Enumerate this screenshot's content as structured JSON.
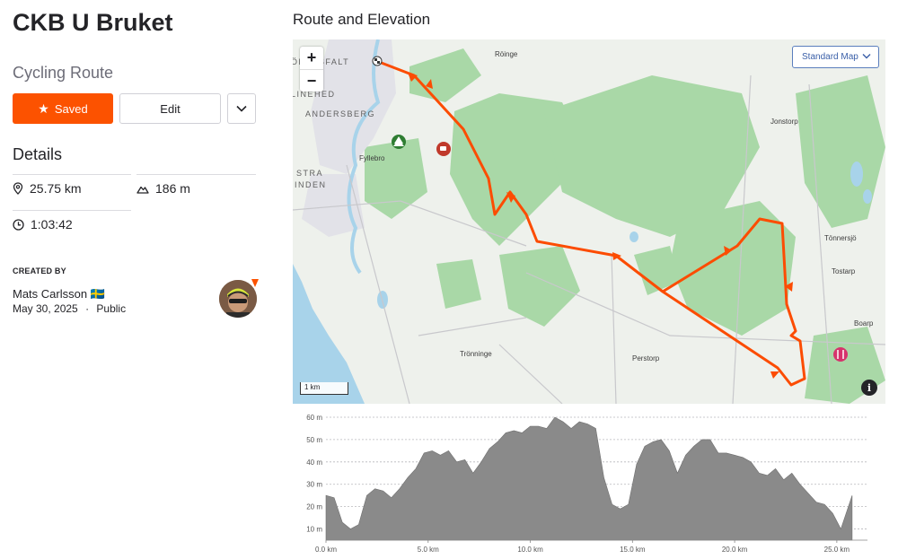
{
  "route": {
    "title": "CKB U Bruket",
    "type": "Cycling Route"
  },
  "buttons": {
    "saved_label": "Saved",
    "edit_label": "Edit"
  },
  "details": {
    "heading": "Details",
    "distance": "25.75 km",
    "elevation_gain": "186 m",
    "duration": "1:03:42"
  },
  "creator": {
    "heading": "CREATED BY",
    "name": "Mats Carlsson 🇸🇪",
    "date": "May 30, 2025",
    "visibility": "Public",
    "separator": "·"
  },
  "section": {
    "title": "Route and Elevation"
  },
  "map": {
    "zoom_in": "+",
    "zoom_out": "−",
    "style_label": "Standard Map",
    "scale_label": "1 km",
    "info_label": "i",
    "labels": {
      "rovsfalt": "ÖRAVSFALT",
      "roinge": "Röinge",
      "linehed": "LINEHED",
      "andersberg": "ANDERSBERG",
      "fyllebro": "Fyllebro",
      "stra": "STRA",
      "inden": "INDEN",
      "jonstorp": "Jonstorp",
      "tonnersjo": "Tönnersjö",
      "tostarp": "Tostarp",
      "boarp": "Boarp",
      "perstorp": "Perstorp",
      "tronninge": "Trönninge"
    },
    "colors": {
      "route": "#fc4c02",
      "water": "#a8d3ea",
      "forest": "#a9d8a7",
      "land": "#eef1ec"
    }
  },
  "elevation": {
    "y_ticks": [
      "10 m",
      "20 m",
      "30 m",
      "40 m",
      "50 m",
      "60 m"
    ],
    "x_ticks": [
      "0.0 km",
      "5.0 km",
      "10.0 km",
      "15.0 km",
      "20.0 km",
      "25.0 km"
    ],
    "fill_color": "#8a8a8a",
    "x_km": [
      0,
      0.4,
      0.8,
      1.2,
      1.6,
      2.0,
      2.4,
      2.8,
      3.2,
      3.6,
      4.0,
      4.4,
      4.8,
      5.2,
      5.6,
      6.0,
      6.4,
      6.8,
      7.2,
      7.6,
      8.0,
      8.4,
      8.8,
      9.2,
      9.6,
      10.0,
      10.4,
      10.8,
      11.2,
      11.6,
      12.0,
      12.4,
      12.8,
      13.2,
      13.6,
      14.0,
      14.4,
      14.8,
      15.2,
      15.6,
      16.0,
      16.4,
      16.8,
      17.2,
      17.6,
      18.0,
      18.4,
      18.8,
      19.2,
      19.6,
      20.0,
      20.4,
      20.8,
      21.2,
      21.6,
      22.0,
      22.4,
      22.8,
      23.2,
      23.6,
      24.0,
      24.4,
      24.8,
      25.2,
      25.75
    ],
    "y_m": [
      25,
      24,
      13,
      10,
      12,
      25,
      28,
      27,
      24,
      28,
      33,
      37,
      44,
      45,
      43,
      45,
      40,
      41,
      35,
      40,
      46,
      49,
      53,
      54,
      53,
      56,
      56,
      55,
      60,
      58,
      55,
      58,
      57,
      55,
      33,
      21,
      19,
      21,
      39,
      47,
      49,
      50,
      45,
      35,
      43,
      47,
      50,
      50,
      44,
      44,
      43,
      42,
      40,
      35,
      34,
      37,
      32,
      35,
      30,
      26,
      22,
      21,
      17,
      10,
      25
    ]
  }
}
